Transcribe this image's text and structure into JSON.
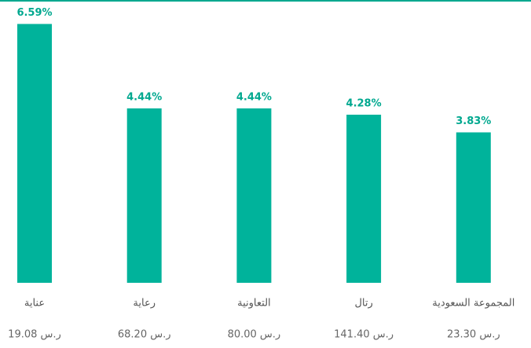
{
  "chart_data": {
    "type": "bar",
    "categories": [
      "عناية",
      "رعاية",
      "التعاونية",
      "رتال",
      "المجموعة السعودية"
    ],
    "prices": [
      "ر.س 19.08",
      "ر.س 68.20",
      "ر.س 80.00",
      "ر.س 141.40",
      "ر.س 23.30"
    ],
    "values": [
      6.59,
      4.44,
      4.44,
      4.28,
      3.83
    ],
    "value_labels": [
      "6.59%",
      "4.44%",
      "4.44%",
      "4.28%",
      "3.83%"
    ],
    "color": "#00b39b"
  }
}
